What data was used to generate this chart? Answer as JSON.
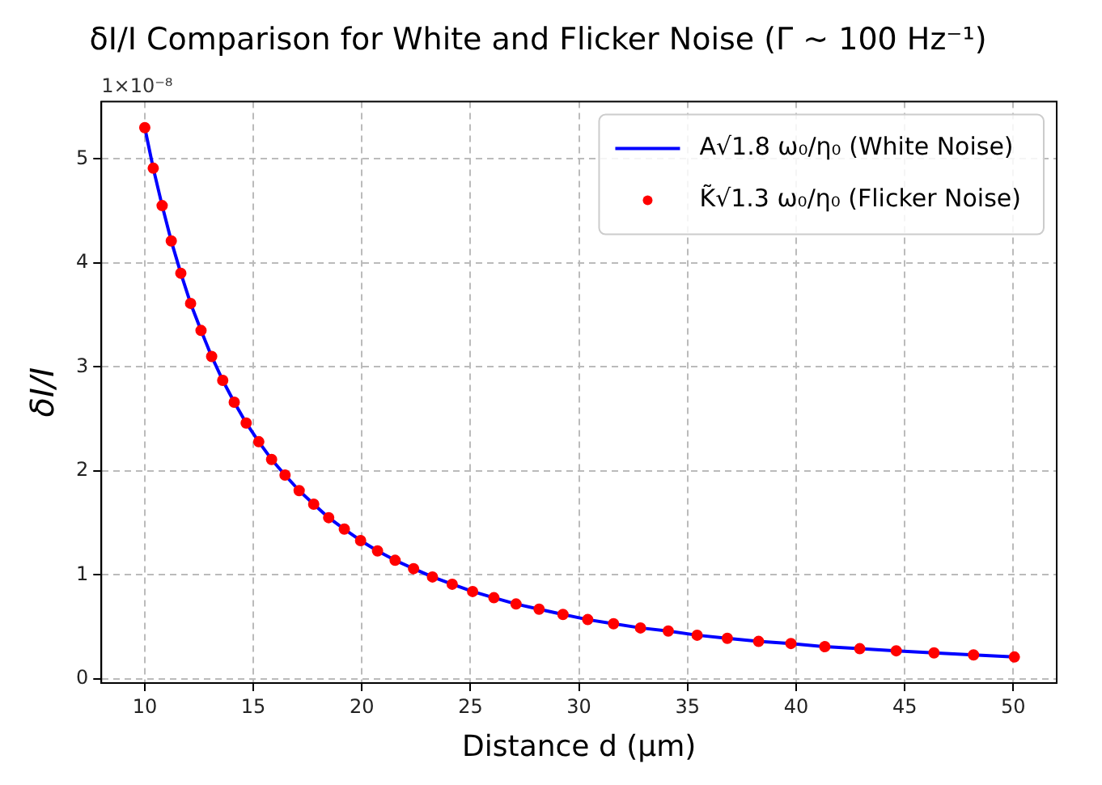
{
  "chart_data": {
    "type": "line",
    "title": "δI/I Comparison for White and Flicker Noise (Γ ∼ 100 Hz⁻¹)",
    "xlabel": "Distance d (μm)",
    "ylabel": "δI/I",
    "annotations": [
      "1×10⁻⁸"
    ],
    "x": [
      10.0,
      10.39,
      10.8,
      11.22,
      11.66,
      12.11,
      12.59,
      13.08,
      13.59,
      14.12,
      14.67,
      15.25,
      15.84,
      16.46,
      17.11,
      17.78,
      18.47,
      19.19,
      19.94,
      20.72,
      21.53,
      22.38,
      23.25,
      24.16,
      25.1,
      26.08,
      27.1,
      28.16,
      29.26,
      30.4,
      31.59,
      32.83,
      34.11,
      35.44,
      36.83,
      38.27,
      39.76,
      41.32,
      42.93,
      44.61,
      46.35,
      48.17,
      50.05
    ],
    "series": [
      {
        "name": "A√1.8 ω₀/η₀ (White Noise)",
        "type": "line",
        "color": "#0000ff",
        "marker": "none",
        "line_style": "solid",
        "values": [
          5.3,
          4.91,
          4.55,
          4.21,
          3.9,
          3.61,
          3.35,
          3.1,
          2.87,
          2.66,
          2.46,
          2.28,
          2.11,
          1.96,
          1.81,
          1.68,
          1.55,
          1.44,
          1.33,
          1.23,
          1.14,
          1.06,
          0.98,
          0.91,
          0.84,
          0.78,
          0.72,
          0.67,
          0.62,
          0.57,
          0.53,
          0.49,
          0.46,
          0.42,
          0.39,
          0.36,
          0.34,
          0.31,
          0.29,
          0.27,
          0.25,
          0.23,
          0.21
        ]
      },
      {
        "name": "K̃√1.3 ω₀/η₀ (Flicker Noise)",
        "type": "scatter",
        "color": "#ff0000",
        "marker": "circle",
        "values": [
          5.3,
          4.91,
          4.55,
          4.21,
          3.9,
          3.61,
          3.35,
          3.1,
          2.87,
          2.66,
          2.46,
          2.28,
          2.11,
          1.96,
          1.81,
          1.68,
          1.55,
          1.44,
          1.33,
          1.23,
          1.14,
          1.06,
          0.98,
          0.91,
          0.84,
          0.78,
          0.72,
          0.67,
          0.62,
          0.57,
          0.53,
          0.49,
          0.46,
          0.42,
          0.39,
          0.36,
          0.34,
          0.31,
          0.29,
          0.27,
          0.25,
          0.23,
          0.21
        ]
      }
    ],
    "xlim": [
      8,
      52
    ],
    "xticks": [
      10,
      15,
      20,
      25,
      30,
      35,
      40,
      45,
      50
    ],
    "ylim": [
      -0.04,
      5.55
    ],
    "yticks": [
      0,
      1,
      2,
      3,
      4,
      5
    ],
    "grid": true,
    "legend": "top right"
  }
}
